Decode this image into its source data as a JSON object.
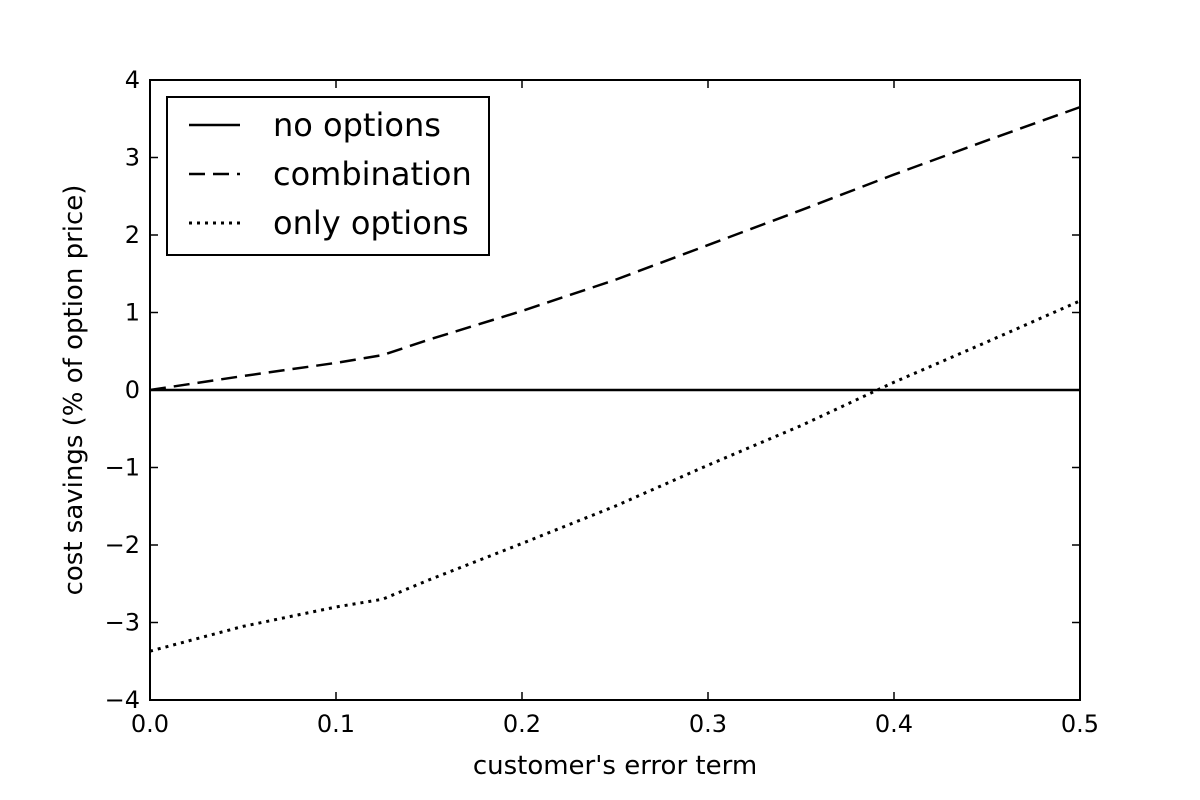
{
  "chart_data": {
    "type": "line",
    "xlabel": "customer's error term",
    "ylabel": "cost savings (% of option price)",
    "xlim": [
      0.0,
      0.5
    ],
    "ylim": [
      -4,
      4
    ],
    "x_ticks": [
      0.0,
      0.1,
      0.2,
      0.3,
      0.4,
      0.5
    ],
    "x_tick_labels": [
      "0.0",
      "0.1",
      "0.2",
      "0.3",
      "0.4",
      "0.5"
    ],
    "y_ticks": [
      4,
      3,
      2,
      1,
      0,
      -1,
      -2,
      -3,
      -4
    ],
    "y_tick_labels": [
      "4",
      "3",
      "2",
      "1",
      "0",
      "−1",
      "−2",
      "−3",
      "−4"
    ],
    "grid": false,
    "legend_position": "top-left",
    "series": [
      {
        "name": "no options",
        "style": "solid",
        "color": "#000000",
        "x": [
          0.0,
          0.5
        ],
        "y": [
          0.0,
          0.0
        ]
      },
      {
        "name": "combination",
        "style": "dashed",
        "color": "#000000",
        "x": [
          0.0,
          0.05,
          0.1,
          0.125,
          0.15,
          0.2,
          0.25,
          0.3,
          0.35,
          0.4,
          0.45,
          0.5
        ],
        "y": [
          0.0,
          0.18,
          0.35,
          0.45,
          0.65,
          1.02,
          1.42,
          1.87,
          2.32,
          2.78,
          3.22,
          3.65
        ]
      },
      {
        "name": "only options",
        "style": "dotted",
        "color": "#000000",
        "x": [
          0.0,
          0.05,
          0.1,
          0.125,
          0.15,
          0.2,
          0.25,
          0.3,
          0.35,
          0.4,
          0.45,
          0.5
        ],
        "y": [
          -3.37,
          -3.05,
          -2.8,
          -2.7,
          -2.45,
          -1.98,
          -1.5,
          -0.97,
          -0.46,
          0.1,
          0.62,
          1.15
        ]
      }
    ]
  }
}
